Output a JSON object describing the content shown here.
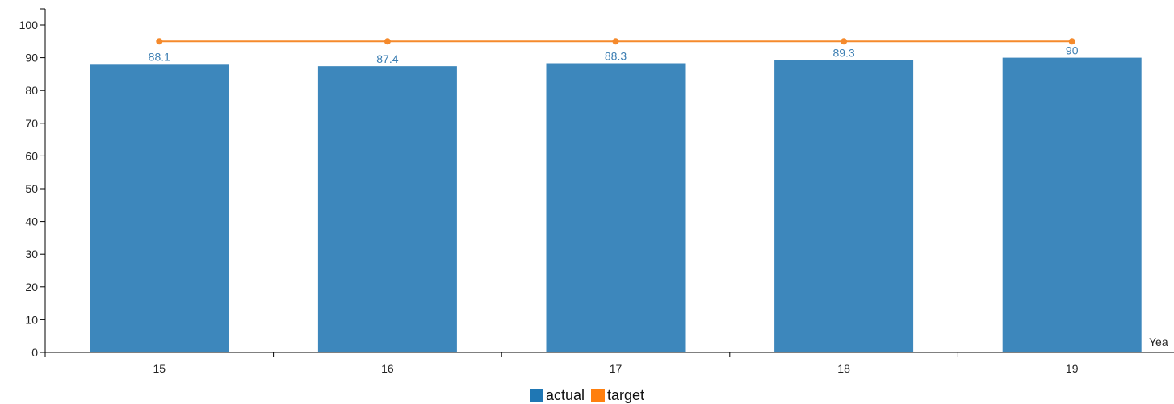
{
  "chart_data": {
    "type": "bar",
    "categories": [
      "15",
      "16",
      "17",
      "18",
      "19"
    ],
    "series": [
      {
        "name": "actual",
        "type": "bar",
        "color": "#3d87bc",
        "label_color": "#3d7fb3",
        "values": [
          88.1,
          87.4,
          88.3,
          89.3,
          90
        ]
      },
      {
        "name": "target",
        "type": "line",
        "color": "#f58a2c",
        "values": [
          95,
          95,
          95,
          95,
          95
        ]
      }
    ],
    "data_labels": [
      "88.1",
      "87.4",
      "88.3",
      "89.3",
      "90"
    ],
    "xlabel": "Yea",
    "ylabel": "",
    "ylim": [
      0,
      100
    ],
    "yticks": [
      0,
      10,
      20,
      30,
      40,
      50,
      60,
      70,
      80,
      90,
      100
    ],
    "grid": false,
    "legend_position": "bottom-center"
  },
  "legend": [
    {
      "label": "actual",
      "color": "#1f77b4"
    },
    {
      "label": "target",
      "color": "#ff7f0e"
    }
  ]
}
